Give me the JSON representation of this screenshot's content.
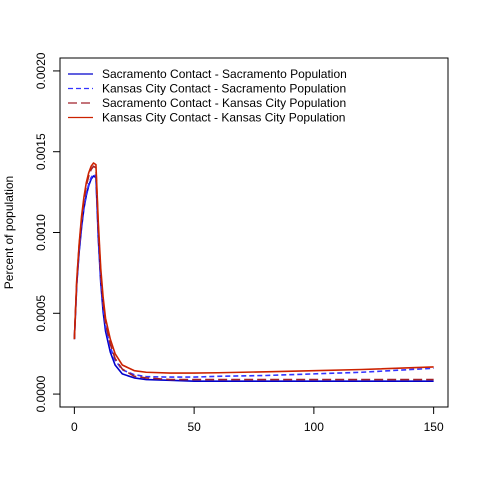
{
  "chart_data": {
    "type": "line",
    "title": "",
    "xlabel": "",
    "ylabel": "Percent of population",
    "xlim": [
      -6,
      156
    ],
    "ylim": [
      -8e-05,
      0.00208
    ],
    "xticks": [
      0,
      50,
      100,
      150
    ],
    "xtick_labels": [
      "0",
      "50",
      "100",
      "150"
    ],
    "yticks": [
      0.0,
      0.0005,
      0.001,
      0.0015,
      0.002
    ],
    "ytick_labels": [
      "0.0000",
      "0.0005",
      "0.0010",
      "0.0015",
      "0.0020"
    ],
    "grid": false,
    "legend_position": "top-left",
    "series": [
      {
        "name": "Sacramento Contact - Sacramento Population",
        "color": "#0000cc",
        "dash": "solid",
        "x": [
          0,
          1,
          2,
          3,
          4,
          5,
          6,
          7,
          8,
          9,
          10,
          11,
          12,
          13,
          15,
          17,
          20,
          25,
          30,
          40,
          50,
          60,
          80,
          100,
          120,
          150
        ],
        "y": [
          0.00034,
          0.00068,
          0.00088,
          0.00103,
          0.00115,
          0.00123,
          0.00129,
          0.00133,
          0.00135,
          0.00134,
          0.00096,
          0.00069,
          0.00051,
          0.00039,
          0.00026,
          0.00018,
          0.000125,
          0.0001,
          9e-05,
          8.5e-05,
          8e-05,
          8e-05,
          8e-05,
          8e-05,
          8e-05,
          8e-05
        ]
      },
      {
        "name": "Kansas City Contact - Sacramento Population",
        "color": "#3333ff",
        "dash": "dashed",
        "x": [
          0,
          1,
          2,
          3,
          4,
          5,
          6,
          7,
          8,
          9,
          10,
          11,
          12,
          13,
          15,
          17,
          20,
          25,
          30,
          40,
          50,
          60,
          80,
          100,
          120,
          150
        ],
        "y": [
          0.00034,
          0.00068,
          0.00089,
          0.00104,
          0.00116,
          0.00124,
          0.0013,
          0.00134,
          0.00136,
          0.00135,
          0.00098,
          0.00071,
          0.00054,
          0.00042,
          0.00029,
          0.00021,
          0.00015,
          0.00012,
          0.000108,
          0.000105,
          0.000105,
          0.00011,
          0.000115,
          0.000125,
          0.000135,
          0.00016
        ]
      },
      {
        "name": "Sacramento Contact - Kansas City Population",
        "color": "#a0202a",
        "dash": "longdash",
        "x": [
          0,
          1,
          2,
          3,
          4,
          5,
          6,
          7,
          8,
          9,
          10,
          11,
          12,
          13,
          15,
          17,
          20,
          25,
          30,
          40,
          50,
          60,
          80,
          100,
          120,
          150
        ],
        "y": [
          0.00034,
          0.0007,
          0.00092,
          0.00108,
          0.0012,
          0.00129,
          0.00135,
          0.00139,
          0.00141,
          0.0014,
          0.00103,
          0.00075,
          0.00057,
          0.00044,
          0.00031,
          0.00022,
          0.000155,
          0.00011,
          0.0001,
          9e-05,
          9e-05,
          9e-05,
          9e-05,
          9e-05,
          9e-05,
          9e-05
        ]
      },
      {
        "name": "Kansas City Contact - Kansas City Population",
        "color": "#cc2200",
        "dash": "solid",
        "x": [
          0,
          1,
          2,
          3,
          4,
          5,
          6,
          7,
          8,
          9,
          10,
          11,
          12,
          13,
          15,
          17,
          20,
          25,
          30,
          40,
          50,
          60,
          80,
          100,
          120,
          150
        ],
        "y": [
          0.00034,
          0.00071,
          0.00093,
          0.0011,
          0.00122,
          0.00131,
          0.00137,
          0.00141,
          0.00143,
          0.00142,
          0.00106,
          0.00078,
          0.0006,
          0.00047,
          0.00034,
          0.00025,
          0.00018,
          0.000145,
          0.000135,
          0.00013,
          0.00013,
          0.000132,
          0.000138,
          0.000145,
          0.000152,
          0.000168
        ]
      }
    ]
  }
}
